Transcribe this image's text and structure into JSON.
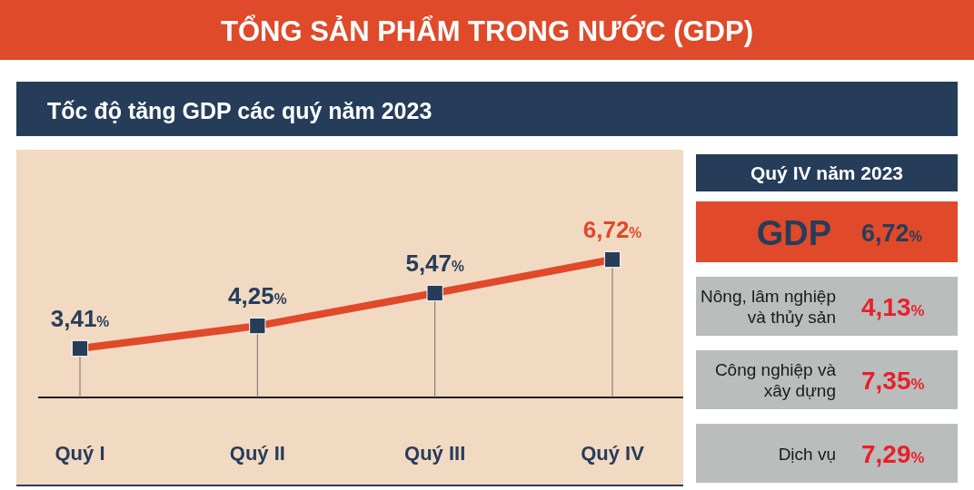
{
  "chart_data": [
    {
      "type": "line",
      "title": "TỔNG SẢN PHẨM TRONG NƯỚC (GDP)",
      "subtitle": "Tốc độ tăng GDP các quý năm 2023",
      "categories": [
        "Quý I",
        "Quý II",
        "Quý III",
        "Quý IV"
      ],
      "series": [
        {
          "color": "#e0492a",
          "values": [
            3.41,
            4.25,
            5.47,
            6.72
          ],
          "value_labels": [
            "3,41%",
            "4,25%",
            "5,47%",
            "6,72%"
          ]
        }
      ],
      "marker": "square",
      "grid": "x"
    },
    {
      "type": "other",
      "title": "Quý IV năm 2023",
      "categories": [
        "GDP",
        "Nông, lâm nghiệp và thủy sản",
        "Công nghiệp và xây dựng",
        "Dịch vụ"
      ],
      "value_labels": [
        "6,72%",
        "4,13%",
        "7,35%",
        "7,29%"
      ],
      "colors": [
        "#e0492a",
        "#b9bdbc",
        "#b9bdbc",
        "#b9bdbc"
      ]
    }
  ]
}
